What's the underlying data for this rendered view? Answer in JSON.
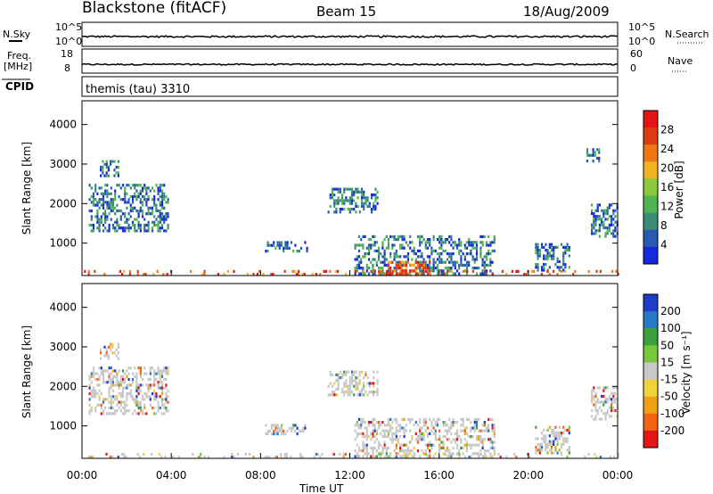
{
  "header": {
    "station": "Blackstone (fitACF)",
    "beam": "Beam 15",
    "date": "18/Aug/2009"
  },
  "chart_data": [
    {
      "type": "line",
      "name": "noise-panel",
      "left_label": "N.Sky",
      "right_label": "N.Search",
      "left_ticks": [
        "10^5",
        "10^0"
      ],
      "right_ticks": [
        "10^5",
        "10^0"
      ],
      "series": [
        {
          "name": "N.Sky",
          "level": "10^0"
        }
      ]
    },
    {
      "type": "line",
      "name": "freq-panel",
      "left_label_lines": [
        "Freq.",
        "[MHz]"
      ],
      "right_label": "Nave",
      "left_ticks": [
        "18",
        "8"
      ],
      "right_ticks": [
        "60",
        "0"
      ],
      "series": [
        {
          "name": "Freq.",
          "values_mhz": 10.5
        }
      ]
    },
    {
      "type": "text",
      "name": "cpid-panel",
      "left_label": "CPID",
      "program": "themis (tau) 3310"
    },
    {
      "type": "heatmap",
      "name": "power-panel",
      "ylabel": "Slant Range [km]",
      "yticks": [
        1000,
        2000,
        3000,
        4000
      ],
      "ylim": [
        180,
        4600
      ],
      "xlim_hours": [
        0,
        24
      ],
      "colorbar_label": "Power [dB]",
      "colorbar_ticks": [
        4,
        8,
        12,
        16,
        20,
        24,
        28
      ],
      "colorbar_range": [
        0,
        30
      ],
      "colors": [
        "#1428dc",
        "#285ab4",
        "#3c8c78",
        "#50b450",
        "#8cc83c",
        "#f0b41e",
        "#f07814",
        "#dc3c14",
        "#e61414"
      ],
      "echo_regions": [
        {
          "t_start": 0.3,
          "t_end": 3.9,
          "r_min": 1300,
          "r_max": 2500
        },
        {
          "t_start": 0.8,
          "t_end": 1.6,
          "r_min": 2700,
          "r_max": 3100
        },
        {
          "t_start": 8.2,
          "t_end": 10.1,
          "r_min": 800,
          "r_max": 1050
        },
        {
          "t_start": 11.0,
          "t_end": 13.2,
          "r_min": 1800,
          "r_max": 2400
        },
        {
          "t_start": 12.2,
          "t_end": 18.5,
          "r_min": 250,
          "r_max": 1200
        },
        {
          "t_start": 13.6,
          "t_end": 15.6,
          "r_min": 220,
          "r_max": 550
        },
        {
          "t_start": 20.3,
          "t_end": 21.8,
          "r_min": 300,
          "r_max": 1000
        },
        {
          "t_start": 22.8,
          "t_end": 24.0,
          "r_min": 1200,
          "r_max": 2000
        },
        {
          "t_start": 22.6,
          "t_end": 23.2,
          "r_min": 3100,
          "r_max": 3400
        },
        {
          "t_start": 0.0,
          "t_end": 24.0,
          "r_min": 200,
          "r_max": 320
        }
      ]
    },
    {
      "type": "heatmap",
      "name": "velocity-panel",
      "ylabel": "Slant Range [km]",
      "yticks": [
        1000,
        2000,
        3000,
        4000
      ],
      "ylim": [
        180,
        4600
      ],
      "xlim_hours": [
        0,
        24
      ],
      "xticks": [
        "00:00",
        "04:00",
        "08:00",
        "12:00",
        "16:00",
        "20:00",
        "00:00"
      ],
      "xlabel": "Time UT",
      "colorbar_label": "Velocity [m s⁻¹]",
      "colorbar_ticks": [
        200,
        100,
        50,
        15,
        -15,
        -50,
        -100,
        -200
      ],
      "colors": [
        "#1e3cc8",
        "#2878c8",
        "#3ca03c",
        "#78c83c",
        "#c8c8c8",
        "#f0d23c",
        "#f0a014",
        "#f06414",
        "#e61414"
      ],
      "echo_regions": [
        {
          "t_start": 0.3,
          "t_end": 3.9,
          "r_min": 1300,
          "r_max": 2500
        },
        {
          "t_start": 0.8,
          "t_end": 1.6,
          "r_min": 2700,
          "r_max": 3100
        },
        {
          "t_start": 8.2,
          "t_end": 10.1,
          "r_min": 800,
          "r_max": 1050
        },
        {
          "t_start": 11.0,
          "t_end": 13.2,
          "r_min": 1800,
          "r_max": 2400
        },
        {
          "t_start": 12.2,
          "t_end": 18.5,
          "r_min": 250,
          "r_max": 1200
        },
        {
          "t_start": 20.3,
          "t_end": 21.8,
          "r_min": 300,
          "r_max": 1000
        },
        {
          "t_start": 22.8,
          "t_end": 24.0,
          "r_min": 1200,
          "r_max": 2000
        },
        {
          "t_start": 0.0,
          "t_end": 24.0,
          "r_min": 200,
          "r_max": 320
        }
      ]
    }
  ]
}
